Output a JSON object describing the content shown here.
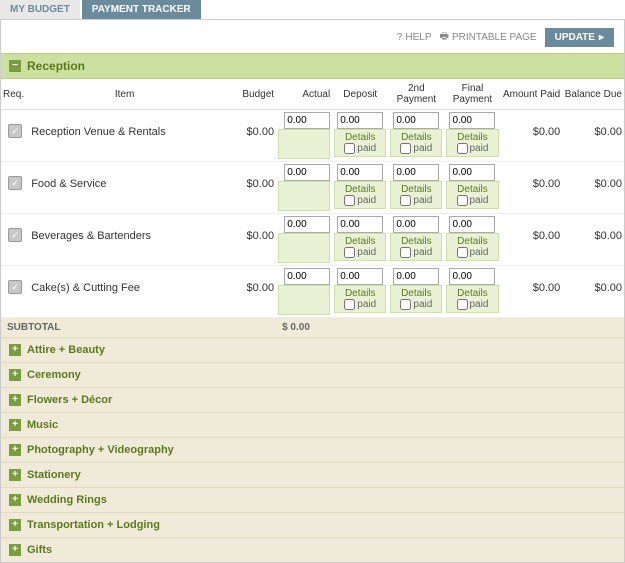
{
  "tabs": {
    "budget": "MY BUDGET",
    "tracker": "PAYMENT TRACKER"
  },
  "toolbar": {
    "help": "HELP",
    "print": "PRINTABLE PAGE",
    "update": "UPDATE"
  },
  "section": {
    "title": "Reception"
  },
  "headers": {
    "req": "Req.",
    "item": "Item",
    "budget": "Budget",
    "actual": "Actual",
    "deposit": "Deposit",
    "pay2": "2nd Payment",
    "pay3": "Final Payment",
    "amount_paid": "Amount Paid",
    "balance_due": "Balance Due"
  },
  "cell": {
    "details": "Details",
    "paid": "paid"
  },
  "items": [
    {
      "name": "Reception Venue & Rentals",
      "budget": "$0.00",
      "actual": "0.00",
      "deposit": "0.00",
      "pay2": "0.00",
      "pay3": "0.00",
      "amount_paid": "$0.00",
      "balance_due": "$0.00"
    },
    {
      "name": "Food & Service",
      "budget": "$0.00",
      "actual": "0.00",
      "deposit": "0.00",
      "pay2": "0.00",
      "pay3": "0.00",
      "amount_paid": "$0.00",
      "balance_due": "$0.00"
    },
    {
      "name": "Beverages & Bartenders",
      "budget": "$0.00",
      "actual": "0.00",
      "deposit": "0.00",
      "pay2": "0.00",
      "pay3": "0.00",
      "amount_paid": "$0.00",
      "balance_due": "$0.00"
    },
    {
      "name": "Cake(s) & Cutting Fee",
      "budget": "$0.00",
      "actual": "0.00",
      "deposit": "0.00",
      "pay2": "0.00",
      "pay3": "0.00",
      "amount_paid": "$0.00",
      "balance_due": "$0.00"
    }
  ],
  "subtotal": {
    "label": "SUBTOTAL",
    "value": "$ 0.00"
  },
  "collapsed": [
    "Attire + Beauty",
    "Ceremony",
    "Flowers + Décor",
    "Music",
    "Photography + Videography",
    "Stationery",
    "Wedding Rings",
    "Transportation + Lodging",
    "Gifts"
  ]
}
